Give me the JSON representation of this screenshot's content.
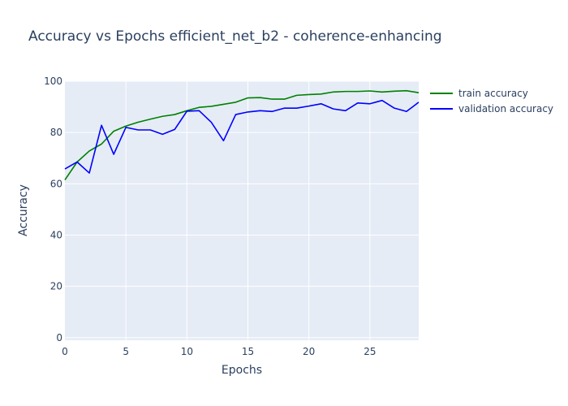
{
  "chart_data": {
    "type": "line",
    "title": "Accuracy vs Epochs efficient_net_b2 - coherence-enhancing",
    "xlabel": "Epochs",
    "ylabel": "Accuracy",
    "xlim": [
      0,
      29
    ],
    "ylim": [
      -1,
      100
    ],
    "xticks": [
      0,
      5,
      10,
      15,
      20,
      25
    ],
    "yticks": [
      0,
      20,
      40,
      60,
      80,
      100
    ],
    "grid": true,
    "legend_position": "top-right",
    "plot_background": "#e5ecf6",
    "x": [
      0,
      1,
      2,
      3,
      4,
      5,
      6,
      7,
      8,
      9,
      10,
      11,
      12,
      13,
      14,
      15,
      16,
      17,
      18,
      19,
      20,
      21,
      22,
      23,
      24,
      25,
      26,
      27,
      28,
      29
    ],
    "series": [
      {
        "name": "train accuracy",
        "color": "#008000",
        "values": [
          61.5,
          68.5,
          72.8,
          75.5,
          80.5,
          82.5,
          84.0,
          85.2,
          86.3,
          87.0,
          88.5,
          89.8,
          90.2,
          91.0,
          91.8,
          93.5,
          93.6,
          93.0,
          93.0,
          94.5,
          94.8,
          95.0,
          95.8,
          96.0,
          96.0,
          96.2,
          95.8,
          96.1,
          96.3,
          95.5
        ]
      },
      {
        "name": "validation accuracy",
        "color": "#0000ff",
        "values": [
          65.8,
          68.5,
          64.2,
          82.8,
          71.5,
          82.0,
          81.0,
          81.0,
          79.3,
          81.2,
          88.3,
          88.5,
          84.0,
          76.8,
          87.0,
          88.0,
          88.5,
          88.2,
          89.5,
          89.5,
          90.3,
          91.2,
          89.2,
          88.5,
          91.5,
          91.2,
          92.5,
          89.5,
          88.2,
          91.8
        ]
      }
    ]
  }
}
